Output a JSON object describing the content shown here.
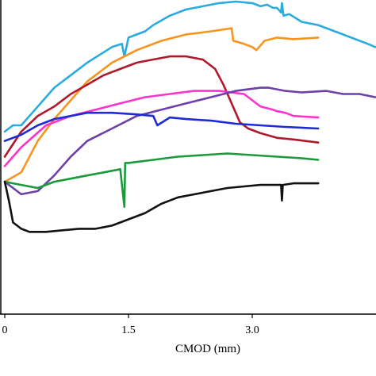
{
  "chart_data": {
    "type": "line",
    "title": "",
    "xlabel": "CMOD (mm)",
    "ylabel": "",
    "xlim": [
      0,
      4.5
    ],
    "ylim": [
      0,
      1
    ],
    "x_ticks": [
      0,
      1.5,
      3.0
    ],
    "x_tick_labels": [
      "0",
      "1.5",
      "3.0"
    ],
    "grid": false,
    "legend": "none",
    "series": [
      {
        "color": "#29abe2",
        "x": [
          0,
          0.1,
          0.2,
          0.4,
          0.6,
          0.8,
          1.0,
          1.3,
          1.42,
          1.45,
          1.5,
          1.7,
          1.8,
          2.0,
          2.2,
          2.4,
          2.6,
          2.8,
          3.0,
          3.1,
          3.18,
          3.25,
          3.3,
          3.35,
          3.36,
          3.38,
          3.45,
          3.6,
          3.8,
          4.0,
          4.2,
          4.4,
          4.55
        ],
        "y": [
          0.58,
          0.6,
          0.6,
          0.66,
          0.72,
          0.76,
          0.8,
          0.85,
          0.86,
          0.82,
          0.88,
          0.9,
          0.92,
          0.95,
          0.97,
          0.98,
          0.99,
          0.995,
          0.99,
          0.98,
          0.985,
          0.975,
          0.975,
          0.96,
          0.99,
          0.95,
          0.955,
          0.93,
          0.92,
          0.9,
          0.88,
          0.86,
          0.85
        ]
      },
      {
        "color": "#f7941d",
        "x": [
          0,
          0.2,
          0.4,
          0.6,
          0.8,
          1.0,
          1.3,
          1.6,
          1.9,
          2.2,
          2.5,
          2.75,
          2.77,
          2.9,
          3.0,
          3.05,
          3.15,
          3.3,
          3.5,
          3.8
        ],
        "y": [
          0.42,
          0.45,
          0.55,
          0.62,
          0.68,
          0.74,
          0.8,
          0.84,
          0.87,
          0.89,
          0.9,
          0.91,
          0.87,
          0.86,
          0.85,
          0.84,
          0.87,
          0.88,
          0.875,
          0.88
        ]
      },
      {
        "color": "#b2182b",
        "x": [
          0,
          0.2,
          0.4,
          0.6,
          0.8,
          1.0,
          1.2,
          1.4,
          1.6,
          1.8,
          2.0,
          2.2,
          2.4,
          2.55,
          2.65,
          2.75,
          2.85,
          2.95,
          3.1,
          3.3,
          3.5,
          3.8
        ],
        "y": [
          0.5,
          0.58,
          0.63,
          0.66,
          0.7,
          0.73,
          0.76,
          0.78,
          0.8,
          0.81,
          0.82,
          0.82,
          0.81,
          0.78,
          0.73,
          0.67,
          0.61,
          0.59,
          0.575,
          0.56,
          0.555,
          0.545
        ]
      },
      {
        "color": "#ff33cc",
        "x": [
          0,
          0.2,
          0.5,
          0.8,
          1.1,
          1.4,
          1.7,
          2.0,
          2.3,
          2.6,
          2.9,
          3.1,
          3.25,
          3.3,
          3.4,
          3.5,
          3.8
        ],
        "y": [
          0.47,
          0.53,
          0.6,
          0.63,
          0.65,
          0.67,
          0.69,
          0.7,
          0.71,
          0.71,
          0.7,
          0.66,
          0.65,
          0.645,
          0.64,
          0.63,
          0.625
        ]
      },
      {
        "color": "#6d3fa8",
        "x": [
          0,
          0.2,
          0.4,
          0.6,
          0.8,
          1.0,
          1.3,
          1.6,
          1.9,
          2.2,
          2.5,
          2.8,
          3.1,
          3.2,
          3.4,
          3.6,
          3.9,
          4.1,
          4.3,
          4.55
        ],
        "y": [
          0.42,
          0.38,
          0.39,
          0.44,
          0.5,
          0.55,
          0.59,
          0.63,
          0.65,
          0.67,
          0.69,
          0.71,
          0.72,
          0.72,
          0.71,
          0.705,
          0.71,
          0.7,
          0.7,
          0.69
        ]
      },
      {
        "color": "#1f2bd6",
        "x": [
          0,
          0.2,
          0.4,
          0.6,
          0.8,
          1.0,
          1.3,
          1.6,
          1.8,
          1.85,
          2.0,
          2.2,
          2.5,
          2.8,
          3.1,
          3.4,
          3.8
        ],
        "y": [
          0.55,
          0.57,
          0.6,
          0.62,
          0.63,
          0.64,
          0.64,
          0.635,
          0.63,
          0.6,
          0.625,
          0.62,
          0.615,
          0.605,
          0.6,
          0.595,
          0.59
        ]
      },
      {
        "color": "#1a9a3a",
        "x": [
          0,
          0.2,
          0.4,
          0.6,
          0.8,
          1.0,
          1.2,
          1.4,
          1.45,
          1.46,
          1.5,
          1.8,
          2.1,
          2.4,
          2.7,
          3.0,
          3.3,
          3.6,
          3.8
        ],
        "y": [
          0.42,
          0.41,
          0.4,
          0.42,
          0.43,
          0.44,
          0.45,
          0.46,
          0.34,
          0.48,
          0.48,
          0.49,
          0.5,
          0.505,
          0.51,
          0.505,
          0.5,
          0.495,
          0.49
        ]
      },
      {
        "color": "#111111",
        "x": [
          0,
          0.05,
          0.1,
          0.2,
          0.3,
          0.5,
          0.7,
          0.9,
          1.1,
          1.3,
          1.5,
          1.7,
          1.9,
          2.1,
          2.3,
          2.5,
          2.7,
          2.9,
          3.1,
          3.35,
          3.36,
          3.37,
          3.5,
          3.8
        ],
        "y": [
          0.42,
          0.36,
          0.29,
          0.27,
          0.26,
          0.26,
          0.265,
          0.27,
          0.27,
          0.28,
          0.3,
          0.32,
          0.35,
          0.37,
          0.38,
          0.39,
          0.4,
          0.405,
          0.41,
          0.41,
          0.36,
          0.41,
          0.415,
          0.415
        ]
      }
    ]
  }
}
